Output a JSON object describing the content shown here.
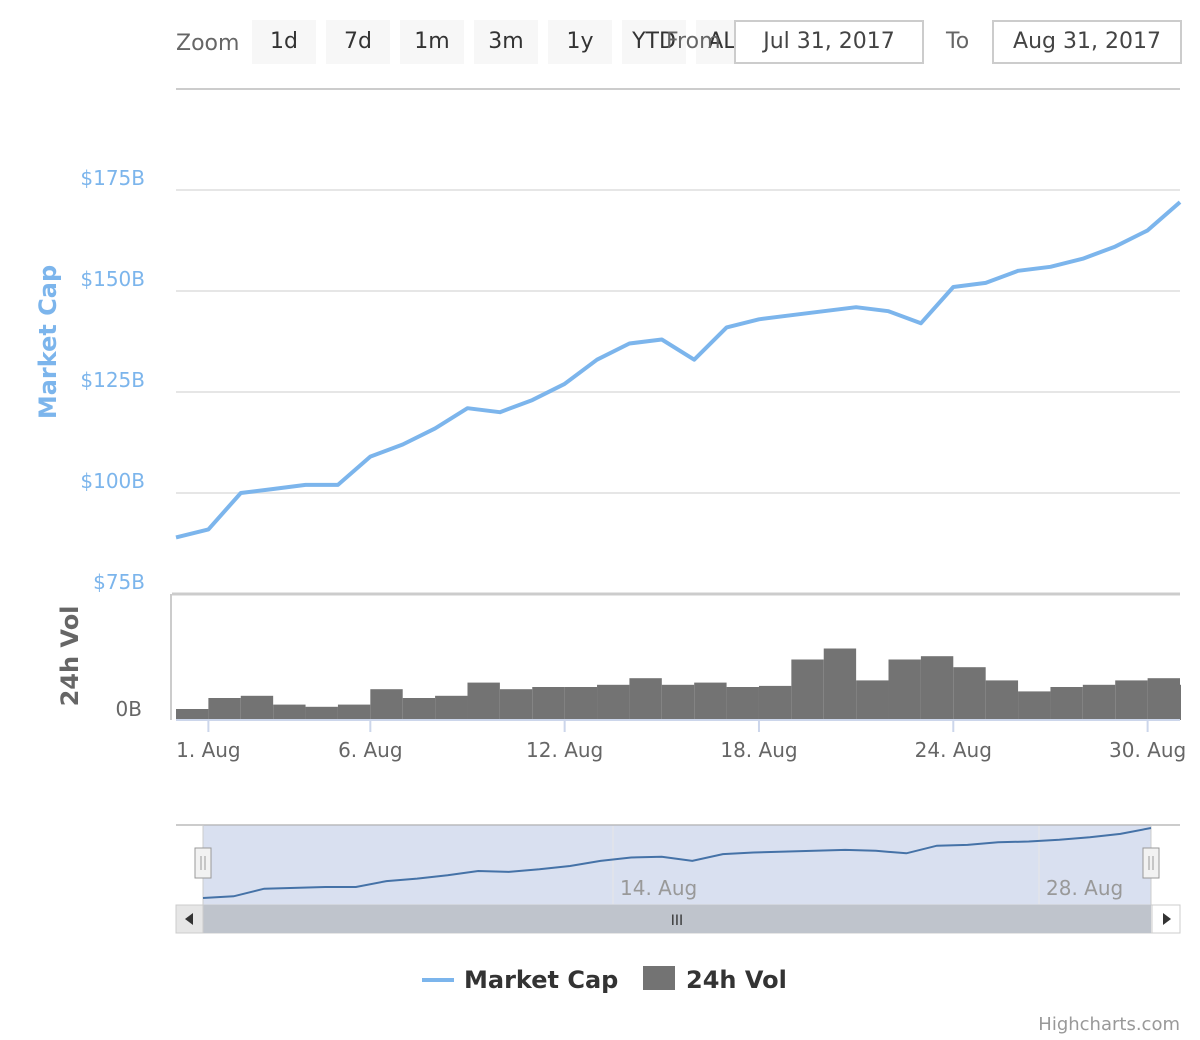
{
  "rangeSelector": {
    "zoom_label": "Zoom",
    "buttons": [
      "1d",
      "7d",
      "1m",
      "3m",
      "1y",
      "YTD",
      "ALL"
    ],
    "from_label": "From",
    "from_value": "Jul 31, 2017",
    "to_label": "To",
    "to_value": "Aug 31, 2017"
  },
  "legend": {
    "items": [
      {
        "label": "Market Cap",
        "color": "#7cb5ec"
      },
      {
        "label": "24h Vol",
        "color": "#737373"
      }
    ]
  },
  "credits": "Highcharts.com",
  "navigator": {
    "tick_labels": [
      "14. Aug",
      "28. Aug"
    ],
    "scrollbar_grip": "III"
  },
  "chart_data": {
    "type": "line",
    "title": "",
    "x_start": "2017-07-31",
    "x_end": "2017-08-31",
    "x_ticks": [
      "1. Aug",
      "6. Aug",
      "12. Aug",
      "18. Aug",
      "24. Aug",
      "30. Aug"
    ],
    "x_tick_dates": [
      "2017-08-01",
      "2017-08-06",
      "2017-08-12",
      "2017-08-18",
      "2017-08-24",
      "2017-08-30"
    ],
    "market_cap_axis": {
      "title": "Market Cap",
      "ticks": [
        "$75B",
        "$100B",
        "$125B",
        "$150B",
        "$175B"
      ],
      "tick_values": [
        75,
        100,
        125,
        150,
        175
      ],
      "ylim": [
        75,
        200
      ],
      "unit": "B"
    },
    "volume_axis": {
      "title": "24h Vol",
      "ticks": [
        "0B"
      ],
      "tick_values": [
        0
      ]
    },
    "series": [
      {
        "name": "Market Cap",
        "type": "line",
        "color": "#7cb5ec",
        "x": [
          "2017-07-31",
          "2017-08-01",
          "2017-08-02",
          "2017-08-03",
          "2017-08-04",
          "2017-08-05",
          "2017-08-06",
          "2017-08-07",
          "2017-08-08",
          "2017-08-09",
          "2017-08-10",
          "2017-08-11",
          "2017-08-12",
          "2017-08-13",
          "2017-08-14",
          "2017-08-15",
          "2017-08-16",
          "2017-08-17",
          "2017-08-18",
          "2017-08-19",
          "2017-08-20",
          "2017-08-21",
          "2017-08-22",
          "2017-08-23",
          "2017-08-24",
          "2017-08-25",
          "2017-08-26",
          "2017-08-27",
          "2017-08-28",
          "2017-08-29",
          "2017-08-30",
          "2017-08-31"
        ],
        "values": [
          89,
          91,
          100,
          101,
          102,
          102,
          109,
          112,
          116,
          121,
          120,
          123,
          127,
          133,
          137,
          138,
          133,
          141,
          143,
          144,
          145,
          146,
          145,
          142,
          151,
          152,
          155,
          156,
          158,
          161,
          165,
          172
        ]
      },
      {
        "name": "24h Vol",
        "type": "column",
        "color": "#737373",
        "x": [
          "2017-07-31",
          "2017-08-01",
          "2017-08-02",
          "2017-08-03",
          "2017-08-04",
          "2017-08-05",
          "2017-08-06",
          "2017-08-07",
          "2017-08-08",
          "2017-08-09",
          "2017-08-10",
          "2017-08-11",
          "2017-08-12",
          "2017-08-13",
          "2017-08-14",
          "2017-08-15",
          "2017-08-16",
          "2017-08-17",
          "2017-08-18",
          "2017-08-19",
          "2017-08-20",
          "2017-08-21",
          "2017-08-22",
          "2017-08-23",
          "2017-08-24",
          "2017-08-25",
          "2017-08-26",
          "2017-08-27",
          "2017-08-28",
          "2017-08-29",
          "2017-08-30",
          "2017-08-31"
        ],
        "values": [
          1.0,
          2.0,
          2.2,
          1.4,
          1.2,
          1.4,
          2.8,
          2.0,
          2.2,
          3.4,
          2.8,
          3.0,
          3.0,
          3.2,
          3.8,
          3.2,
          3.4,
          3.0,
          3.1,
          5.5,
          6.5,
          3.6,
          5.5,
          5.8,
          4.8,
          3.6,
          2.6,
          3.0,
          3.2,
          3.6,
          3.8,
          3.2
        ]
      }
    ],
    "grid": true,
    "legend_position": "bottom-center"
  }
}
